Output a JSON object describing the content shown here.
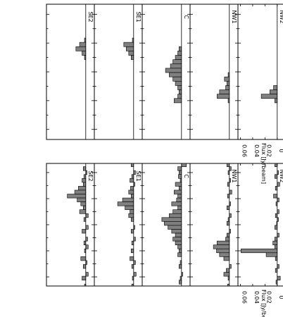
{
  "chart_data": [
    {
      "type": "bar",
      "panel_group": "left",
      "xlabel": "VLSR [km/s]",
      "ylabel": "Flux [Jy/beam]",
      "xlim": [
        470,
        -470
      ],
      "ylim": [
        -0.014,
        0.064
      ],
      "x_ticks": [
        "400",
        "200",
        "0",
        "-200",
        "-400"
      ],
      "y_ticks": [
        "0.06",
        "0.04",
        "0.02",
        "0"
      ],
      "orientation": "rotated-90",
      "channel_width_kmps": 30,
      "panels": [
        {
          "label": "NW2",
          "x": [
            460,
            430,
            400,
            370,
            340,
            310,
            280,
            250,
            220,
            190,
            160,
            130,
            100,
            70,
            40,
            10,
            -20,
            -50,
            -80,
            -110,
            -140,
            -170,
            -200,
            -230,
            -260,
            -290,
            -320,
            -350,
            -380,
            -410,
            -440,
            -470
          ],
          "values": [
            0.004,
            0.0,
            -0.002,
            0.004,
            0.0,
            -0.004,
            0.003,
            0.0,
            0.006,
            -0.003,
            0.002,
            0.0,
            -0.003,
            0.003,
            -0.002,
            0.001,
            0.004,
            0.0,
            -0.003,
            0.004,
            0.007,
            0.004,
            0.059,
            0.018,
            0.003,
            0.0,
            -0.003,
            0.003,
            0.0,
            -0.005,
            0.002,
            0.0
          ]
        },
        {
          "label": "NW1",
          "x": [
            460,
            430,
            400,
            370,
            340,
            310,
            280,
            250,
            220,
            190,
            160,
            130,
            100,
            70,
            40,
            10,
            -20,
            -50,
            -80,
            -110,
            -140,
            -170,
            -200,
            -230,
            -260,
            -290,
            -320,
            -350,
            -380,
            -410,
            -440,
            -470
          ],
          "values": [
            0.004,
            -0.003,
            0.002,
            0.0,
            -0.002,
            0.003,
            0.0,
            -0.004,
            0.003,
            0.0,
            -0.002,
            0.004,
            0.0,
            -0.003,
            0.002,
            0.004,
            0.0,
            -0.002,
            0.004,
            0.006,
            0.02,
            0.026,
            0.021,
            0.016,
            0.009,
            0.0,
            -0.003,
            0.005,
            0.009,
            0.002,
            0.0,
            0.003
          ]
        },
        {
          "label": "C",
          "x": [
            460,
            430,
            400,
            370,
            340,
            310,
            280,
            250,
            220,
            190,
            160,
            130,
            100,
            70,
            40,
            10,
            -20,
            -50,
            -80,
            -110,
            -140,
            -170,
            -200,
            -230,
            -260,
            -290,
            -320,
            -350,
            -380,
            -410,
            -440,
            -470
          ],
          "values": [
            -0.008,
            0.006,
            0.004,
            0.005,
            0.002,
            0.01,
            0.004,
            0.012,
            0.006,
            0.008,
            0.016,
            0.006,
            0.014,
            0.02,
            0.032,
            0.028,
            0.022,
            0.016,
            0.01,
            0.014,
            0.01,
            0.006,
            0.004,
            0.006,
            0.0,
            0.002,
            0.004,
            0.0,
            -0.002,
            0.002,
            0.004,
            0.0
          ]
        },
        {
          "label": "SE1",
          "x": [
            460,
            430,
            400,
            370,
            340,
            310,
            280,
            250,
            220,
            190,
            160,
            130,
            100,
            70,
            40,
            10,
            -20,
            -50,
            -80,
            -110,
            -140,
            -170,
            -200,
            -230,
            -260,
            -290,
            -320,
            -350,
            -380,
            -410,
            -440,
            -470
          ],
          "values": [
            0.004,
            0.0,
            -0.003,
            0.003,
            0.006,
            -0.002,
            0.005,
            0.008,
            0.004,
            0.018,
            0.026,
            0.014,
            0.006,
            0.008,
            0.004,
            0.0,
            -0.002,
            0.004,
            0.0,
            -0.003,
            0.003,
            0.0,
            0.004,
            0.0,
            0.006,
            -0.003,
            0.003,
            0.0,
            -0.004,
            0.002,
            0.0,
            0.003
          ]
        },
        {
          "label": "SE2",
          "x": [
            460,
            430,
            400,
            370,
            340,
            310,
            280,
            250,
            220,
            190,
            160,
            130,
            100,
            70,
            40,
            10,
            -20,
            -50,
            -80,
            -110,
            -140,
            -170,
            -200,
            -230,
            -260,
            -290,
            -320,
            -350,
            -380,
            -410,
            -440,
            -470
          ],
          "values": [
            0.0,
            0.004,
            -0.002,
            0.003,
            0.006,
            0.004,
            0.012,
            0.018,
            0.03,
            0.014,
            0.008,
            0.004,
            0.01,
            -0.004,
            0.003,
            0.0,
            -0.004,
            0.006,
            0.0,
            -0.003,
            0.003,
            -0.004,
            0.002,
            0.0,
            0.008,
            -0.002,
            0.004,
            0.0,
            -0.004,
            0.006,
            0.0,
            0.002
          ]
        }
      ]
    },
    {
      "type": "bar",
      "panel_group": "right",
      "xlabel": "VLSR [km/s]",
      "ylabel": "Flux [Jy/beam]",
      "xlim": [
        470,
        -470
      ],
      "ylim": [
        -0.014,
        0.064
      ],
      "x_ticks": [
        "400",
        "200",
        "0",
        "-200",
        "-400"
      ],
      "y_ticks": [
        "0.06",
        "0.04",
        "0.02",
        "0"
      ],
      "orientation": "rotated-90",
      "channel_width_kmps": 30,
      "panels": [
        {
          "label": "NW2",
          "x": [
            -80,
            -110,
            -140,
            -170,
            -200
          ],
          "values": [
            0.0,
            0.006,
            0.012,
            0.026,
            0.004
          ]
        },
        {
          "label": "NW1",
          "x": [
            10,
            -20,
            -50,
            -80,
            -110,
            -140,
            -170,
            -200
          ],
          "values": [
            0.0,
            0.002,
            0.008,
            0.004,
            0.006,
            0.016,
            0.02,
            0.002
          ]
        },
        {
          "label": "C",
          "x": [
            160,
            130,
            100,
            70,
            40,
            10,
            -20,
            -50,
            -80,
            -110,
            -140,
            -170,
            -200
          ],
          "values": [
            0.004,
            0.006,
            0.01,
            0.014,
            0.018,
            0.026,
            0.02,
            0.014,
            0.01,
            0.006,
            0.004,
            0.006,
            0.012
          ]
        },
        {
          "label": "SE1",
          "x": [
            220,
            190,
            160,
            130,
            100
          ],
          "values": [
            0.002,
            0.016,
            0.012,
            0.008,
            0.004
          ]
        },
        {
          "label": "SE2",
          "x": [
            220,
            190,
            160,
            130,
            100
          ],
          "values": [
            0.002,
            0.01,
            0.016,
            0.006,
            0.002
          ]
        }
      ]
    }
  ]
}
